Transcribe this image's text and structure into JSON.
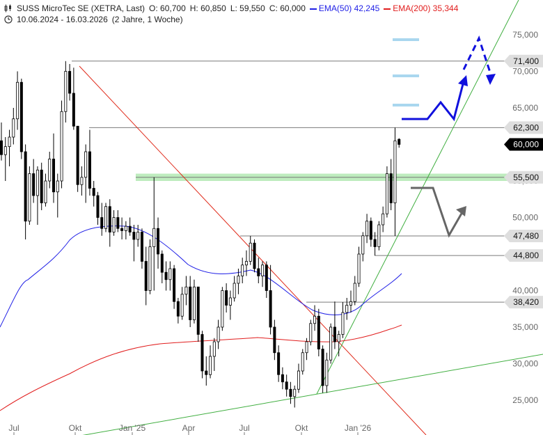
{
  "header": {
    "title": "SUSS MicroTec SE (XETRA, Last)",
    "open": "O: 60,700",
    "high": "H: 60,850",
    "low": "L: 59,550",
    "close": "C: 60,000",
    "ema50_label": "EMA(50)",
    "ema50_value": "42,245",
    "ema200_label": "EMA(200)",
    "ema200_value": "35,344",
    "range": "10.06.2024 - 16.03.2026",
    "period": "(2 Jahre, 1 Woche)"
  },
  "colors": {
    "ema50": "#1e1ee6",
    "ema200": "#e11d1d",
    "trend_red": "#e02a1a",
    "trend_green": "#3fae3f",
    "support_zone": "#a8e6a8",
    "target_marks": "#a9d7ef",
    "forecast_blue": "#1010dd",
    "forecast_gray": "#666666"
  },
  "chart_data": {
    "type": "candlestick",
    "y_axis_ticks": [
      "75,000",
      "70,000",
      "65,000",
      "60,000",
      "55,000",
      "50,000",
      "45,000",
      "40,000",
      "35,000",
      "30,000",
      "25,000"
    ],
    "x_axis_ticks": [
      "Jul",
      "Okt",
      "Jan '25",
      "Apr",
      "Jul",
      "Okt",
      "Jan '26"
    ],
    "price_levels": [
      {
        "label": "71,400",
        "value": 71.4
      },
      {
        "label": "62,300",
        "value": 62.3
      },
      {
        "label": "60,000",
        "value": 60.0,
        "current": true
      },
      {
        "label": "55,500",
        "value": 55.5
      },
      {
        "label": "47,480",
        "value": 47.48
      },
      {
        "label": "44,800",
        "value": 44.8
      },
      {
        "label": "38,420",
        "value": 38.42
      }
    ],
    "ylim": [
      21.5,
      78.5
    ],
    "series": [
      {
        "name": "EMA(50)",
        "value": 42.245
      },
      {
        "name": "EMA(200)",
        "value": 35.344
      }
    ],
    "candles": [
      {
        "w": 0,
        "o": 60.5,
        "h": 63.0,
        "l": 57.8,
        "c": 58.6
      },
      {
        "w": 1,
        "o": 58.6,
        "h": 61.0,
        "l": 55.0,
        "c": 59.7
      },
      {
        "w": 2,
        "o": 59.7,
        "h": 62.0,
        "l": 57.0,
        "c": 61.0
      },
      {
        "w": 3,
        "o": 61.0,
        "h": 65.0,
        "l": 60.0,
        "c": 63.5
      },
      {
        "w": 4,
        "o": 63.5,
        "h": 70.0,
        "l": 62.0,
        "c": 68.5
      },
      {
        "w": 5,
        "o": 68.5,
        "h": 69.0,
        "l": 58.0,
        "c": 59.0
      },
      {
        "w": 6,
        "o": 59.0,
        "h": 60.0,
        "l": 47.0,
        "c": 49.5
      },
      {
        "w": 7,
        "o": 49.5,
        "h": 57.0,
        "l": 49.0,
        "c": 56.0
      },
      {
        "w": 8,
        "o": 56.0,
        "h": 58.0,
        "l": 52.0,
        "c": 53.0
      },
      {
        "w": 9,
        "o": 53.0,
        "h": 57.0,
        "l": 49.0,
        "c": 56.5
      },
      {
        "w": 10,
        "o": 56.5,
        "h": 57.5,
        "l": 51.0,
        "c": 52.0
      },
      {
        "w": 11,
        "o": 52.0,
        "h": 56.0,
        "l": 51.5,
        "c": 55.0
      },
      {
        "w": 12,
        "o": 55.0,
        "h": 59.0,
        "l": 54.0,
        "c": 58.0
      },
      {
        "w": 13,
        "o": 58.0,
        "h": 61.5,
        "l": 52.0,
        "c": 53.5
      },
      {
        "w": 14,
        "o": 53.5,
        "h": 56.0,
        "l": 50.0,
        "c": 55.0
      },
      {
        "w": 15,
        "o": 55.0,
        "h": 66.0,
        "l": 54.0,
        "c": 64.5
      },
      {
        "w": 16,
        "o": 64.5,
        "h": 71.4,
        "l": 63.0,
        "c": 70.0
      },
      {
        "w": 17,
        "o": 70.0,
        "h": 71.0,
        "l": 66.0,
        "c": 67.0
      },
      {
        "w": 18,
        "o": 67.0,
        "h": 70.5,
        "l": 62.0,
        "c": 62.5
      },
      {
        "w": 19,
        "o": 62.5,
        "h": 62.5,
        "l": 53.5,
        "c": 54.5
      },
      {
        "w": 20,
        "o": 54.5,
        "h": 57.0,
        "l": 53.0,
        "c": 55.5
      },
      {
        "w": 21,
        "o": 55.5,
        "h": 60.0,
        "l": 52.0,
        "c": 59.0
      },
      {
        "w": 22,
        "o": 59.0,
        "h": 62.0,
        "l": 53.0,
        "c": 54.0
      },
      {
        "w": 23,
        "o": 54.0,
        "h": 55.0,
        "l": 51.5,
        "c": 53.0
      },
      {
        "w": 24,
        "o": 53.0,
        "h": 53.5,
        "l": 49.0,
        "c": 50.0
      },
      {
        "w": 25,
        "o": 50.0,
        "h": 52.0,
        "l": 47.5,
        "c": 48.5
      },
      {
        "w": 26,
        "o": 48.5,
        "h": 52.0,
        "l": 48.0,
        "c": 51.5
      },
      {
        "w": 27,
        "o": 51.5,
        "h": 52.5,
        "l": 46.0,
        "c": 48.0
      },
      {
        "w": 28,
        "o": 48.0,
        "h": 51.0,
        "l": 47.5,
        "c": 50.0
      },
      {
        "w": 29,
        "o": 50.0,
        "h": 51.0,
        "l": 48.0,
        "c": 48.5
      },
      {
        "w": 30,
        "o": 48.5,
        "h": 50.0,
        "l": 47.0,
        "c": 48.2
      },
      {
        "w": 31,
        "o": 48.2,
        "h": 49.5,
        "l": 47.0,
        "c": 48.8
      },
      {
        "w": 32,
        "o": 48.8,
        "h": 50.0,
        "l": 47.5,
        "c": 48.0
      },
      {
        "w": 33,
        "o": 48.0,
        "h": 49.0,
        "l": 44.0,
        "c": 47.0
      },
      {
        "w": 34,
        "o": 47.0,
        "h": 49.0,
        "l": 46.0,
        "c": 48.0
      },
      {
        "w": 35,
        "o": 48.0,
        "h": 48.5,
        "l": 43.0,
        "c": 44.0
      },
      {
        "w": 36,
        "o": 44.0,
        "h": 46.0,
        "l": 38.0,
        "c": 40.0
      },
      {
        "w": 37,
        "o": 40.0,
        "h": 47.0,
        "l": 39.5,
        "c": 46.0
      },
      {
        "w": 38,
        "o": 46.0,
        "h": 55.5,
        "l": 40.0,
        "c": 48.5
      },
      {
        "w": 39,
        "o": 48.5,
        "h": 50.0,
        "l": 43.0,
        "c": 45.0
      },
      {
        "w": 40,
        "o": 45.0,
        "h": 45.5,
        "l": 41.0,
        "c": 42.5
      },
      {
        "w": 41,
        "o": 42.5,
        "h": 44.0,
        "l": 40.0,
        "c": 41.5
      },
      {
        "w": 42,
        "o": 41.5,
        "h": 44.0,
        "l": 40.0,
        "c": 43.0
      },
      {
        "w": 43,
        "o": 43.0,
        "h": 43.5,
        "l": 37.5,
        "c": 38.5
      },
      {
        "w": 44,
        "o": 38.5,
        "h": 39.0,
        "l": 35.5,
        "c": 36.5
      },
      {
        "w": 45,
        "o": 36.5,
        "h": 40.5,
        "l": 36.0,
        "c": 39.5
      },
      {
        "w": 46,
        "o": 39.5,
        "h": 42.0,
        "l": 38.0,
        "c": 40.5
      },
      {
        "w": 47,
        "o": 40.5,
        "h": 42.0,
        "l": 35.0,
        "c": 36.0
      },
      {
        "w": 48,
        "o": 36.0,
        "h": 41.5,
        "l": 35.5,
        "c": 40.5
      },
      {
        "w": 49,
        "o": 40.5,
        "h": 40.5,
        "l": 33.0,
        "c": 34.0
      },
      {
        "w": 50,
        "o": 34.0,
        "h": 34.5,
        "l": 28.0,
        "c": 29.0
      },
      {
        "w": 51,
        "o": 29.0,
        "h": 31.0,
        "l": 27.0,
        "c": 28.5
      },
      {
        "w": 52,
        "o": 28.5,
        "h": 32.5,
        "l": 28.0,
        "c": 31.0
      },
      {
        "w": 53,
        "o": 31.0,
        "h": 33.5,
        "l": 29.0,
        "c": 33.0
      },
      {
        "w": 54,
        "o": 33.0,
        "h": 36.0,
        "l": 32.0,
        "c": 35.0
      },
      {
        "w": 55,
        "o": 35.0,
        "h": 40.5,
        "l": 34.5,
        "c": 40.0
      },
      {
        "w": 56,
        "o": 40.0,
        "h": 41.0,
        "l": 37.0,
        "c": 38.0
      },
      {
        "w": 57,
        "o": 38.0,
        "h": 40.0,
        "l": 36.0,
        "c": 39.0
      },
      {
        "w": 58,
        "o": 39.0,
        "h": 42.0,
        "l": 38.5,
        "c": 41.0
      },
      {
        "w": 59,
        "o": 41.0,
        "h": 43.0,
        "l": 39.5,
        "c": 42.0
      },
      {
        "w": 60,
        "o": 42.0,
        "h": 44.5,
        "l": 41.0,
        "c": 43.5
      },
      {
        "w": 61,
        "o": 43.5,
        "h": 45.5,
        "l": 42.0,
        "c": 44.0
      },
      {
        "w": 62,
        "o": 44.0,
        "h": 47.48,
        "l": 43.5,
        "c": 46.5
      },
      {
        "w": 63,
        "o": 46.5,
        "h": 47.0,
        "l": 42.5,
        "c": 43.0
      },
      {
        "w": 64,
        "o": 43.0,
        "h": 44.5,
        "l": 41.0,
        "c": 42.0
      },
      {
        "w": 65,
        "o": 42.0,
        "h": 44.0,
        "l": 40.5,
        "c": 43.5
      },
      {
        "w": 66,
        "o": 43.5,
        "h": 44.0,
        "l": 39.0,
        "c": 40.0
      },
      {
        "w": 67,
        "o": 40.0,
        "h": 43.5,
        "l": 34.0,
        "c": 35.0
      },
      {
        "w": 68,
        "o": 35.0,
        "h": 36.0,
        "l": 30.5,
        "c": 31.5
      },
      {
        "w": 69,
        "o": 31.5,
        "h": 32.5,
        "l": 27.5,
        "c": 28.5
      },
      {
        "w": 70,
        "o": 28.5,
        "h": 29.5,
        "l": 26.5,
        "c": 27.5
      },
      {
        "w": 71,
        "o": 27.5,
        "h": 28.5,
        "l": 25.5,
        "c": 26.5
      },
      {
        "w": 72,
        "o": 26.5,
        "h": 27.5,
        "l": 24.5,
        "c": 25.5
      },
      {
        "w": 73,
        "o": 25.5,
        "h": 27.0,
        "l": 24.0,
        "c": 26.5
      },
      {
        "w": 74,
        "o": 26.5,
        "h": 30.0,
        "l": 26.0,
        "c": 29.0
      },
      {
        "w": 75,
        "o": 29.0,
        "h": 32.0,
        "l": 28.5,
        "c": 31.5
      },
      {
        "w": 76,
        "o": 31.5,
        "h": 33.5,
        "l": 30.5,
        "c": 33.0
      },
      {
        "w": 77,
        "o": 33.0,
        "h": 36.0,
        "l": 32.5,
        "c": 35.5
      },
      {
        "w": 78,
        "o": 35.5,
        "h": 38.0,
        "l": 34.5,
        "c": 36.5
      },
      {
        "w": 79,
        "o": 36.5,
        "h": 37.5,
        "l": 31.0,
        "c": 32.0
      },
      {
        "w": 80,
        "o": 32.0,
        "h": 32.5,
        "l": 26.0,
        "c": 27.0
      },
      {
        "w": 81,
        "o": 27.0,
        "h": 31.5,
        "l": 26.0,
        "c": 30.5
      },
      {
        "w": 82,
        "o": 30.5,
        "h": 35.5,
        "l": 30.0,
        "c": 35.0
      },
      {
        "w": 83,
        "o": 35.0,
        "h": 38.5,
        "l": 32.0,
        "c": 33.0
      },
      {
        "w": 84,
        "o": 33.0,
        "h": 34.5,
        "l": 31.0,
        "c": 34.0
      },
      {
        "w": 85,
        "o": 34.0,
        "h": 38.42,
        "l": 33.5,
        "c": 37.0
      },
      {
        "w": 86,
        "o": 37.0,
        "h": 39.0,
        "l": 36.0,
        "c": 38.0
      },
      {
        "w": 87,
        "o": 38.0,
        "h": 40.0,
        "l": 37.0,
        "c": 38.5
      },
      {
        "w": 88,
        "o": 38.5,
        "h": 42.0,
        "l": 38.0,
        "c": 41.0
      },
      {
        "w": 89,
        "o": 41.0,
        "h": 46.0,
        "l": 40.5,
        "c": 45.0
      },
      {
        "w": 90,
        "o": 45.0,
        "h": 48.0,
        "l": 44.0,
        "c": 47.5
      },
      {
        "w": 91,
        "o": 47.5,
        "h": 50.5,
        "l": 46.5,
        "c": 49.5
      },
      {
        "w": 92,
        "o": 49.5,
        "h": 50.0,
        "l": 46.0,
        "c": 47.0
      },
      {
        "w": 93,
        "o": 47.0,
        "h": 48.0,
        "l": 44.8,
        "c": 46.0
      },
      {
        "w": 94,
        "o": 46.0,
        "h": 49.5,
        "l": 45.5,
        "c": 49.0
      },
      {
        "w": 95,
        "o": 49.0,
        "h": 51.5,
        "l": 48.0,
        "c": 50.5
      },
      {
        "w": 96,
        "o": 50.5,
        "h": 57.0,
        "l": 50.0,
        "c": 56.0
      },
      {
        "w": 97,
        "o": 56.0,
        "h": 58.0,
        "l": 51.0,
        "c": 52.0
      },
      {
        "w": 98,
        "o": 52.0,
        "h": 62.3,
        "l": 47.48,
        "c": 60.5
      },
      {
        "w": 99,
        "o": 60.7,
        "h": 60.85,
        "l": 59.55,
        "c": 60.0
      }
    ]
  }
}
